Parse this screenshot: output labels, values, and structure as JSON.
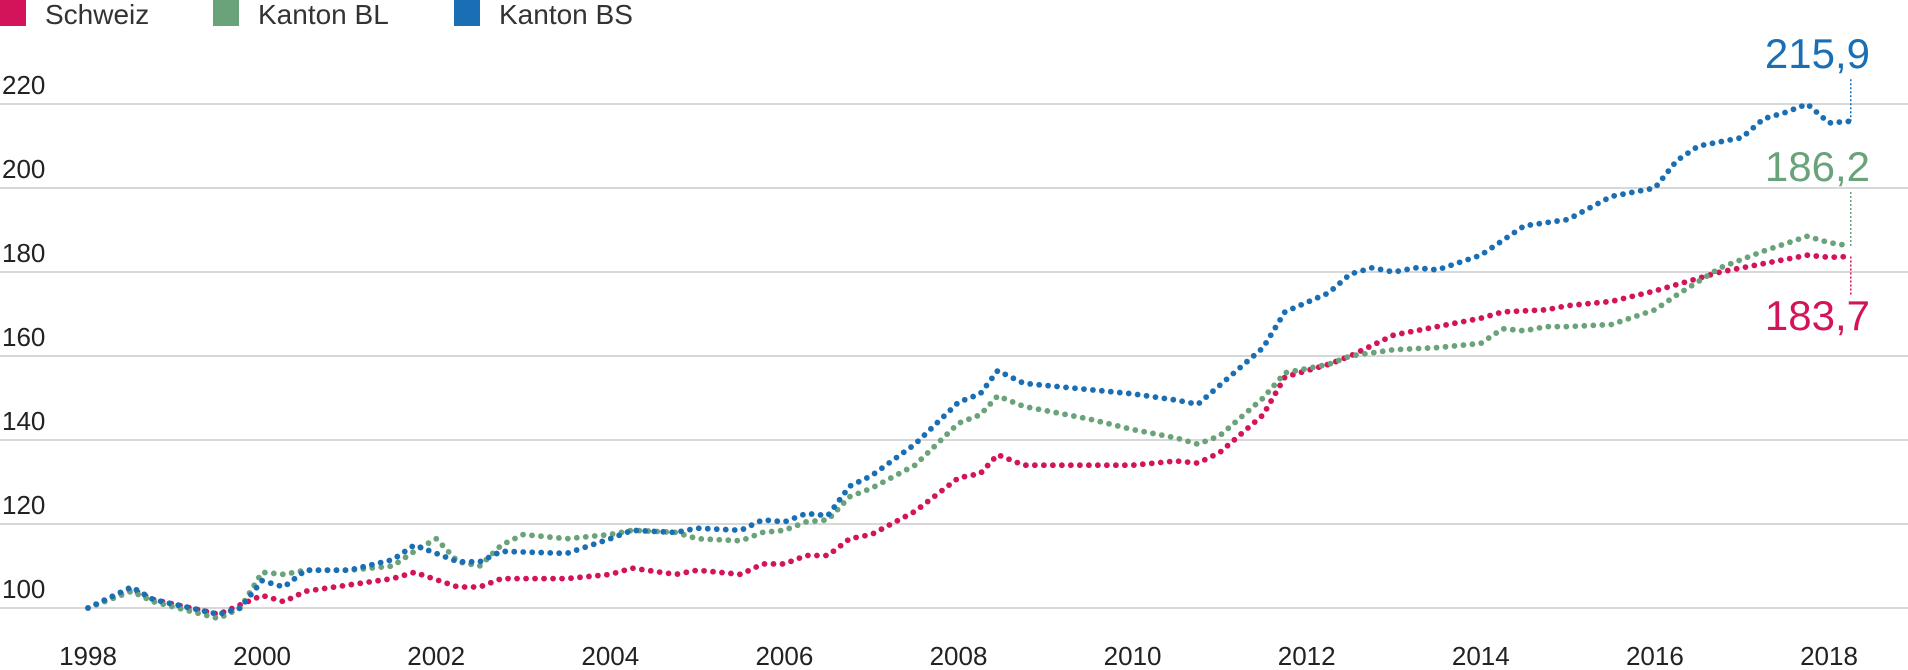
{
  "chart_data": {
    "type": "line",
    "title": "",
    "xlabel": "",
    "ylabel": "",
    "xlim": [
      1998,
      2020.3
    ],
    "ylim": [
      96,
      226
    ],
    "x_ticks": [
      "1998",
      "2000",
      "2002",
      "2004",
      "2006",
      "2008",
      "2010",
      "2012",
      "2014",
      "2016",
      "2018"
    ],
    "y_ticks": [
      "100",
      "120",
      "140",
      "160",
      "180",
      "200",
      "220"
    ],
    "grid": "horizontal",
    "legend_position": "top-left",
    "series": [
      {
        "name": "Schweiz",
        "color": "#d4145a",
        "end_label": "183,7",
        "points": [
          [
            1998,
            100
          ],
          [
            1998.5,
            104.5
          ],
          [
            1998.75,
            102
          ],
          [
            1999.5,
            98.5
          ],
          [
            2000,
            103
          ],
          [
            2000.25,
            101.5
          ],
          [
            2000.5,
            104
          ],
          [
            2001,
            105.5
          ],
          [
            2001.5,
            107
          ],
          [
            2001.75,
            108.5
          ],
          [
            2002.25,
            105
          ],
          [
            2002.5,
            105
          ],
          [
            2002.75,
            107
          ],
          [
            2003.5,
            107
          ],
          [
            2004,
            108
          ],
          [
            2004.25,
            109.5
          ],
          [
            2004.75,
            108
          ],
          [
            2005,
            109
          ],
          [
            2005.5,
            108
          ],
          [
            2005.75,
            110.5
          ],
          [
            2006,
            110.5
          ],
          [
            2006.25,
            112.5
          ],
          [
            2006.5,
            112.5
          ],
          [
            2006.75,
            116.5
          ],
          [
            2007,
            117.5
          ],
          [
            2007.5,
            123
          ],
          [
            2008,
            131
          ],
          [
            2008.25,
            132
          ],
          [
            2008.45,
            136.5
          ],
          [
            2008.75,
            134
          ],
          [
            2009.5,
            134
          ],
          [
            2010,
            134
          ],
          [
            2010.5,
            135
          ],
          [
            2010.75,
            134.5
          ],
          [
            2011,
            137
          ],
          [
            2011.5,
            146
          ],
          [
            2011.75,
            155
          ],
          [
            2012.25,
            158
          ],
          [
            2012.5,
            160
          ],
          [
            2013,
            165
          ],
          [
            2013.5,
            167
          ],
          [
            2014,
            169
          ],
          [
            2014.25,
            170.5
          ],
          [
            2014.75,
            171
          ],
          [
            2015,
            172
          ],
          [
            2015.5,
            173
          ],
          [
            2016,
            175.5
          ],
          [
            2016.25,
            177
          ],
          [
            2016.75,
            180
          ],
          [
            2017.25,
            182
          ],
          [
            2017.75,
            184
          ],
          [
            2018,
            183.5
          ],
          [
            2018.25,
            183.7
          ]
        ]
      },
      {
        "name": "Kanton BL",
        "color": "#6aa27a",
        "end_label": "186,2",
        "points": [
          [
            1998,
            100
          ],
          [
            1998.5,
            104
          ],
          [
            1998.75,
            101.5
          ],
          [
            1999.5,
            97.5
          ],
          [
            1999.75,
            100
          ],
          [
            2000,
            108.5
          ],
          [
            2000.25,
            108
          ],
          [
            2000.5,
            109
          ],
          [
            2001,
            109
          ],
          [
            2001.5,
            110
          ],
          [
            2001.75,
            113.5
          ],
          [
            2002,
            116.5
          ],
          [
            2002.25,
            111
          ],
          [
            2002.5,
            110
          ],
          [
            2002.75,
            115
          ],
          [
            2003,
            117.5
          ],
          [
            2003.5,
            116.5
          ],
          [
            2004,
            117.5
          ],
          [
            2004.25,
            118.5
          ],
          [
            2004.75,
            118
          ],
          [
            2005,
            116.5
          ],
          [
            2005.5,
            116
          ],
          [
            2005.75,
            118
          ],
          [
            2006,
            118.5
          ],
          [
            2006.25,
            120.5
          ],
          [
            2006.5,
            121
          ],
          [
            2006.75,
            126.5
          ],
          [
            2007,
            128.5
          ],
          [
            2007.5,
            134
          ],
          [
            2008,
            144
          ],
          [
            2008.25,
            146
          ],
          [
            2008.45,
            150.5
          ],
          [
            2008.75,
            148
          ],
          [
            2009.5,
            145
          ],
          [
            2010,
            142.5
          ],
          [
            2010.5,
            140.5
          ],
          [
            2010.75,
            139
          ],
          [
            2011,
            141
          ],
          [
            2011.5,
            150
          ],
          [
            2011.75,
            156
          ],
          [
            2012.25,
            158
          ],
          [
            2012.5,
            160
          ],
          [
            2013,
            161.5
          ],
          [
            2013.5,
            162
          ],
          [
            2014,
            163
          ],
          [
            2014.25,
            166.5
          ],
          [
            2014.5,
            166
          ],
          [
            2014.75,
            167
          ],
          [
            2015,
            167
          ],
          [
            2015.5,
            167.5
          ],
          [
            2016,
            171
          ],
          [
            2016.25,
            174.5
          ],
          [
            2016.75,
            181
          ],
          [
            2017.25,
            185
          ],
          [
            2017.75,
            188.5
          ],
          [
            2018,
            187
          ],
          [
            2018.25,
            186.2
          ]
        ]
      },
      {
        "name": "Kanton BS",
        "color": "#1a6fb4",
        "end_label": "215,9",
        "points": [
          [
            1998,
            100
          ],
          [
            1998.5,
            105
          ],
          [
            1998.75,
            102
          ],
          [
            1999.5,
            98.5
          ],
          [
            1999.75,
            100
          ],
          [
            2000,
            106.5
          ],
          [
            2000.25,
            105
          ],
          [
            2000.5,
            109
          ],
          [
            2001,
            109
          ],
          [
            2001.5,
            111.5
          ],
          [
            2001.75,
            115
          ],
          [
            2002,
            113
          ],
          [
            2002.25,
            111
          ],
          [
            2002.5,
            111
          ],
          [
            2002.75,
            113.5
          ],
          [
            2003.5,
            113
          ],
          [
            2004,
            116.5
          ],
          [
            2004.25,
            118.5
          ],
          [
            2004.75,
            118
          ],
          [
            2005,
            119
          ],
          [
            2005.5,
            118.5
          ],
          [
            2005.75,
            121
          ],
          [
            2006,
            120.5
          ],
          [
            2006.25,
            122.5
          ],
          [
            2006.5,
            122
          ],
          [
            2006.75,
            129
          ],
          [
            2007,
            131.5
          ],
          [
            2007.5,
            139
          ],
          [
            2008,
            149
          ],
          [
            2008.25,
            151
          ],
          [
            2008.45,
            156.5
          ],
          [
            2008.75,
            153.5
          ],
          [
            2009.5,
            152
          ],
          [
            2010,
            151
          ],
          [
            2010.5,
            149.5
          ],
          [
            2010.75,
            148.5
          ],
          [
            2011,
            153
          ],
          [
            2011.5,
            162
          ],
          [
            2011.75,
            170.5
          ],
          [
            2012.25,
            175
          ],
          [
            2012.5,
            179.5
          ],
          [
            2012.75,
            181
          ],
          [
            2013,
            180
          ],
          [
            2013.25,
            181
          ],
          [
            2013.5,
            180.5
          ],
          [
            2014,
            184
          ],
          [
            2014.5,
            191
          ],
          [
            2015,
            192.5
          ],
          [
            2015.5,
            198
          ],
          [
            2016,
            200
          ],
          [
            2016.25,
            206.5
          ],
          [
            2016.5,
            210
          ],
          [
            2017,
            212
          ],
          [
            2017.25,
            216.5
          ],
          [
            2017.5,
            218
          ],
          [
            2017.75,
            220
          ],
          [
            2018,
            215.5
          ],
          [
            2018.25,
            215.9
          ]
        ]
      }
    ]
  }
}
